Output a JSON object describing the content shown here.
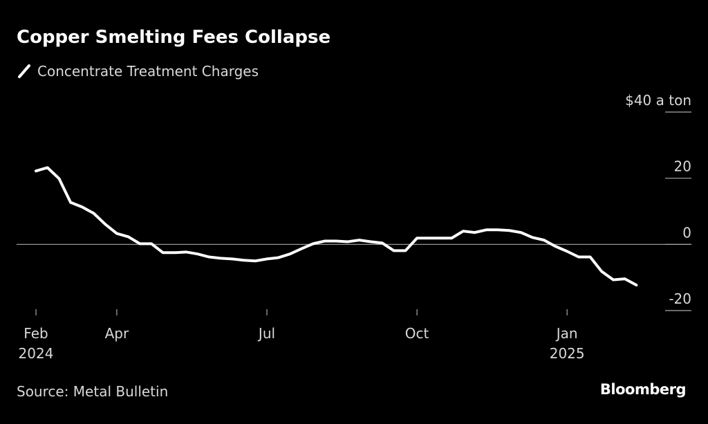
{
  "chart_data": {
    "type": "line",
    "title": "Copper Smelting Fees Collapse",
    "source": "Source: Metal Bulletin",
    "brand": "Bloomberg",
    "categories": [
      "Feb 2024",
      null,
      null,
      null,
      null,
      null,
      null,
      "Apr",
      null,
      null,
      null,
      null,
      null,
      null,
      null,
      null,
      null,
      null,
      null,
      null,
      "Jul",
      null,
      null,
      null,
      null,
      null,
      null,
      null,
      null,
      null,
      null,
      null,
      null,
      "Oct",
      null,
      null,
      null,
      null,
      null,
      null,
      null,
      null,
      null,
      null,
      null,
      null,
      "Jan 2025",
      null,
      null,
      null,
      null,
      null,
      null
    ],
    "series": [
      {
        "name": "Concentrate Treatment Charges",
        "color": "#ffffff",
        "values": [
          22.2,
          23.2,
          19.9,
          12.7,
          11.3,
          9.4,
          6.1,
          3.3,
          2.3,
          0.2,
          0.2,
          -2.5,
          -2.5,
          -2.3,
          -2.9,
          -3.8,
          -4.2,
          -4.4,
          -4.8,
          -5.0,
          -4.4,
          -4.0,
          -2.9,
          -1.3,
          0.2,
          1.0,
          1.0,
          0.8,
          1.3,
          0.8,
          0.4,
          -1.9,
          -1.9,
          1.9,
          1.9,
          1.9,
          1.9,
          4.0,
          3.6,
          4.4,
          4.4,
          4.2,
          3.6,
          2.1,
          1.3,
          -0.6,
          -2.1,
          -3.8,
          -3.8,
          -8.2,
          -10.7,
          -10.4,
          -12.3
        ]
      }
    ],
    "ylim": [
      -20,
      40
    ],
    "yticks": [
      -20,
      0,
      20,
      {
        "value": 40,
        "label": "$40 a ton"
      }
    ],
    "zero_line": true
  }
}
